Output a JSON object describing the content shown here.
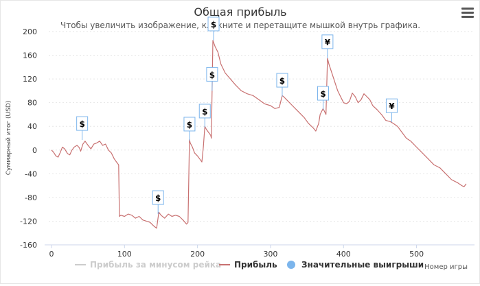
{
  "chart_data": {
    "type": "line",
    "title": "Общая прибыль",
    "subtitle": "Чтобы увеличить изображение, кликните и перетащите мышкой внутрь графика.",
    "xlabel": "Номер игры",
    "ylabel": "Суммарный итог (USD)",
    "xlim": [
      0,
      570
    ],
    "ylim": [
      -160,
      200
    ],
    "x_ticks": [
      0,
      100,
      200,
      300,
      400,
      500
    ],
    "y_ticks": [
      200,
      160,
      120,
      80,
      40,
      0,
      -40,
      -80,
      -120,
      -160
    ],
    "grid": true,
    "legend_position": "bottom",
    "colors": {
      "profit": "#c87070",
      "rake": "#cccccc",
      "wins": "#7cb5ec",
      "title": "#333333"
    },
    "series": [
      {
        "name": "Прибыль за минусом рейка",
        "hidden": true,
        "values": []
      },
      {
        "name": "Прибыль",
        "x": [
          0,
          3,
          6,
          9,
          12,
          15,
          18,
          22,
          25,
          28,
          31,
          35,
          38,
          40,
          43,
          46,
          50,
          54,
          58,
          62,
          66,
          70,
          74,
          78,
          82,
          86,
          89,
          92,
          93,
          95,
          100,
          105,
          110,
          115,
          120,
          125,
          130,
          135,
          140,
          144,
          147,
          150,
          155,
          160,
          165,
          170,
          175,
          180,
          185,
          187,
          189,
          190,
          193,
          196,
          200,
          203,
          206,
          208,
          210,
          212,
          215,
          218,
          219,
          221,
          224,
          228,
          232,
          238,
          245,
          252,
          260,
          268,
          276,
          284,
          292,
          300,
          306,
          312,
          316,
          318,
          322,
          330,
          338,
          346,
          352,
          358,
          362,
          366,
          368,
          372,
          374,
          376,
          378,
          380,
          384,
          388,
          392,
          396,
          400,
          404,
          408,
          412,
          416,
          420,
          424,
          428,
          432,
          436,
          440,
          446,
          452,
          458,
          464,
          468,
          474,
          480,
          486,
          492,
          500,
          508,
          516,
          524,
          532,
          540,
          548,
          556,
          562,
          565,
          568
        ],
        "values": [
          0,
          -4,
          -10,
          -12,
          -4,
          5,
          2,
          -6,
          -8,
          0,
          5,
          8,
          4,
          -2,
          10,
          15,
          8,
          2,
          10,
          12,
          15,
          8,
          10,
          0,
          -5,
          -15,
          -20,
          -25,
          -112,
          -110,
          -112,
          -108,
          -110,
          -115,
          -112,
          -118,
          -120,
          -122,
          -128,
          -132,
          -105,
          -110,
          -115,
          -108,
          -112,
          -110,
          -112,
          -118,
          -125,
          -122,
          18,
          12,
          5,
          -5,
          -10,
          -15,
          -20,
          5,
          40,
          35,
          30,
          25,
          20,
          185,
          175,
          165,
          145,
          130,
          120,
          110,
          100,
          95,
          92,
          85,
          78,
          75,
          70,
          72,
          92,
          90,
          85,
          75,
          65,
          55,
          45,
          38,
          32,
          45,
          60,
          70,
          65,
          60,
          155,
          145,
          130,
          115,
          100,
          90,
          80,
          78,
          82,
          96,
          90,
          80,
          85,
          95,
          90,
          85,
          75,
          68,
          60,
          50,
          48,
          45,
          40,
          30,
          20,
          15,
          5,
          -5,
          -15,
          -25,
          -30,
          -40,
          -50,
          -55,
          -60,
          -62,
          -57
        ]
      },
      {
        "name": "Значительные выигрыши",
        "points": [
          {
            "x": 42,
            "y": 17,
            "label": "$"
          },
          {
            "x": 146,
            "y": -108,
            "label": "$"
          },
          {
            "x": 189,
            "y": 16,
            "label": "$"
          },
          {
            "x": 210,
            "y": 38,
            "label": "$"
          },
          {
            "x": 220,
            "y": 100,
            "label": "$"
          },
          {
            "x": 222,
            "y": 185,
            "label": "$"
          },
          {
            "x": 316,
            "y": 90,
            "label": "$"
          },
          {
            "x": 372,
            "y": 68,
            "label": "$"
          },
          {
            "x": 378,
            "y": 155,
            "label": "¥"
          },
          {
            "x": 466,
            "y": 47,
            "label": "¥"
          }
        ]
      }
    ]
  },
  "menu": {
    "icon": "hamburger-menu-icon"
  }
}
